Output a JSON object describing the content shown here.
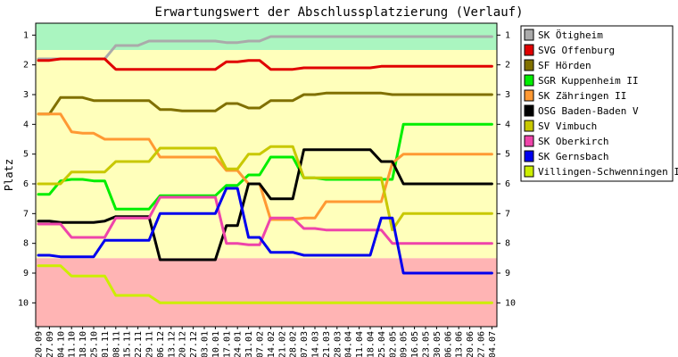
{
  "chart_data": {
    "type": "line",
    "title": "Erwartungswert der Abschlussplatzierung (Verlauf)",
    "ylabel": "Platz",
    "ylim": [
      0.6,
      10.8
    ],
    "y_ticks": [
      "1",
      "2",
      "3",
      "4",
      "5",
      "6",
      "7",
      "8",
      "9",
      "10"
    ],
    "y_inverted": true,
    "grid": false,
    "legend_position": "right",
    "zones": [
      {
        "from": 0.6,
        "to": 1.5,
        "color": "#aaf5c0"
      },
      {
        "from": 1.5,
        "to": 8.5,
        "color": "#ffffbb"
      },
      {
        "from": 8.5,
        "to": 10.8,
        "color": "#ffb4b4"
      }
    ],
    "categories": [
      "20.09",
      "27.09",
      "04.10",
      "11.10",
      "18.10",
      "25.10",
      "01.11",
      "08.11",
      "15.11",
      "22.11",
      "29.11",
      "06.12",
      "13.12",
      "20.12",
      "27.12",
      "03.01",
      "10.01",
      "17.01",
      "24.01",
      "31.01",
      "07.02",
      "14.02",
      "21.02",
      "28.02",
      "07.03",
      "14.03",
      "21.03",
      "28.03",
      "04.04",
      "11.04",
      "18.04",
      "25.04",
      "02.05",
      "09.05",
      "16.05",
      "23.05",
      "30.05",
      "06.06",
      "13.06",
      "20.06",
      "27.06",
      "04.07"
    ],
    "series": [
      {
        "name": "SK Ötigheim",
        "color": "#aaaaaa",
        "values": [
          1.8,
          1.8,
          1.8,
          1.8,
          1.8,
          1.8,
          1.8,
          1.35,
          1.35,
          1.35,
          1.2,
          1.2,
          1.2,
          1.2,
          1.2,
          1.2,
          1.2,
          1.25,
          1.25,
          1.2,
          1.2,
          1.05,
          1.05,
          1.05,
          1.05,
          1.05,
          1.05,
          1.05,
          1.05,
          1.05,
          1.05,
          1.05,
          1.05,
          1.05,
          1.05,
          1.05,
          1.05,
          1.05,
          1.05,
          1.05,
          1.05,
          1.05
        ]
      },
      {
        "name": "SVG Offenburg",
        "color": "#e00000",
        "values": [
          1.85,
          1.85,
          1.8,
          1.8,
          1.8,
          1.8,
          1.8,
          2.15,
          2.15,
          2.15,
          2.15,
          2.15,
          2.15,
          2.15,
          2.15,
          2.15,
          2.15,
          1.9,
          1.9,
          1.85,
          1.85,
          2.15,
          2.15,
          2.15,
          2.1,
          2.1,
          2.1,
          2.1,
          2.1,
          2.1,
          2.1,
          2.05,
          2.05,
          2.05,
          2.05,
          2.05,
          2.05,
          2.05,
          2.05,
          2.05,
          2.05,
          2.05
        ]
      },
      {
        "name": "SF Hörden",
        "color": "#807000",
        "values": [
          3.65,
          3.65,
          3.1,
          3.1,
          3.1,
          3.2,
          3.2,
          3.2,
          3.2,
          3.2,
          3.2,
          3.5,
          3.5,
          3.55,
          3.55,
          3.55,
          3.55,
          3.3,
          3.3,
          3.45,
          3.45,
          3.2,
          3.2,
          3.2,
          3.0,
          3.0,
          2.95,
          2.95,
          2.95,
          2.95,
          2.95,
          2.95,
          3.0,
          3.0,
          3.0,
          3.0,
          3.0,
          3.0,
          3.0,
          3.0,
          3.0,
          3.0
        ]
      },
      {
        "name": "SGR Kuppenheim II",
        "color": "#00ee00",
        "values": [
          6.35,
          6.35,
          5.9,
          5.85,
          5.85,
          5.9,
          5.9,
          6.85,
          6.85,
          6.85,
          6.85,
          6.4,
          6.4,
          6.4,
          6.4,
          6.4,
          6.4,
          6.05,
          6.05,
          5.7,
          5.7,
          5.1,
          5.1,
          5.1,
          5.8,
          5.8,
          5.85,
          5.85,
          5.85,
          5.85,
          5.85,
          5.85,
          5.85,
          4.0,
          4.0,
          4.0,
          4.0,
          4.0,
          4.0,
          4.0,
          4.0,
          4.0
        ]
      },
      {
        "name": "SK Zähringen II",
        "color": "#ff9933",
        "values": [
          3.65,
          3.65,
          3.65,
          4.25,
          4.3,
          4.3,
          4.5,
          4.5,
          4.5,
          4.5,
          4.5,
          5.1,
          5.1,
          5.1,
          5.1,
          5.1,
          5.1,
          5.55,
          5.55,
          6.0,
          6.0,
          7.2,
          7.2,
          7.2,
          7.15,
          7.15,
          6.6,
          6.6,
          6.6,
          6.6,
          6.6,
          6.6,
          5.3,
          5.0,
          5.0,
          5.0,
          5.0,
          5.0,
          5.0,
          5.0,
          5.0,
          5.0
        ]
      },
      {
        "name": "OSG Baden-Baden V",
        "color": "#000000",
        "values": [
          7.25,
          7.25,
          7.3,
          7.3,
          7.3,
          7.3,
          7.25,
          7.1,
          7.1,
          7.1,
          7.1,
          8.55,
          8.55,
          8.55,
          8.55,
          8.55,
          8.55,
          7.4,
          7.4,
          6.0,
          6.0,
          6.5,
          6.5,
          6.5,
          4.85,
          4.85,
          4.85,
          4.85,
          4.85,
          4.85,
          4.85,
          5.25,
          5.25,
          6.0,
          6.0,
          6.0,
          6.0,
          6.0,
          6.0,
          6.0,
          6.0,
          6.0
        ]
      },
      {
        "name": "SV Vimbuch",
        "color": "#c8c800",
        "values": [
          6.0,
          6.0,
          6.0,
          5.6,
          5.6,
          5.6,
          5.6,
          5.25,
          5.25,
          5.25,
          5.25,
          4.8,
          4.8,
          4.8,
          4.8,
          4.8,
          4.8,
          5.5,
          5.5,
          5.0,
          5.0,
          4.75,
          4.75,
          4.75,
          5.8,
          5.8,
          5.8,
          5.8,
          5.8,
          5.8,
          5.8,
          5.8,
          7.55,
          7.0,
          7.0,
          7.0,
          7.0,
          7.0,
          7.0,
          7.0,
          7.0,
          7.0
        ]
      },
      {
        "name": "SK Oberkirch",
        "color": "#ee44aa",
        "values": [
          7.35,
          7.35,
          7.35,
          7.8,
          7.8,
          7.8,
          7.8,
          7.15,
          7.15,
          7.15,
          7.15,
          6.45,
          6.45,
          6.45,
          6.45,
          6.45,
          6.45,
          8.0,
          8.0,
          8.05,
          8.05,
          7.15,
          7.15,
          7.15,
          7.5,
          7.5,
          7.55,
          7.55,
          7.55,
          7.55,
          7.55,
          7.55,
          8.0,
          8.0,
          8.0,
          8.0,
          8.0,
          8.0,
          8.0,
          8.0,
          8.0,
          8.0
        ]
      },
      {
        "name": "SK Gernsbach",
        "color": "#0000ee",
        "values": [
          8.4,
          8.4,
          8.45,
          8.45,
          8.45,
          8.45,
          7.9,
          7.9,
          7.9,
          7.9,
          7.9,
          7.0,
          7.0,
          7.0,
          7.0,
          7.0,
          7.0,
          6.15,
          6.15,
          7.8,
          7.8,
          8.3,
          8.3,
          8.3,
          8.4,
          8.4,
          8.4,
          8.4,
          8.4,
          8.4,
          8.4,
          7.15,
          7.15,
          9.0,
          9.0,
          9.0,
          9.0,
          9.0,
          9.0,
          9.0,
          9.0,
          9.0
        ]
      },
      {
        "name": "Villingen-Schwenningen II",
        "color": "#ccee00",
        "values": [
          8.75,
          8.75,
          8.75,
          9.1,
          9.1,
          9.1,
          9.1,
          9.75,
          9.75,
          9.75,
          9.75,
          10.0,
          10.0,
          10.0,
          10.0,
          10.0,
          10.0,
          10.0,
          10.0,
          10.0,
          10.0,
          10.0,
          10.0,
          10.0,
          10.0,
          10.0,
          10.0,
          10.0,
          10.0,
          10.0,
          10.0,
          10.0,
          10.0,
          10.0,
          10.0,
          10.0,
          10.0,
          10.0,
          10.0,
          10.0,
          10.0,
          10.0
        ]
      }
    ]
  }
}
